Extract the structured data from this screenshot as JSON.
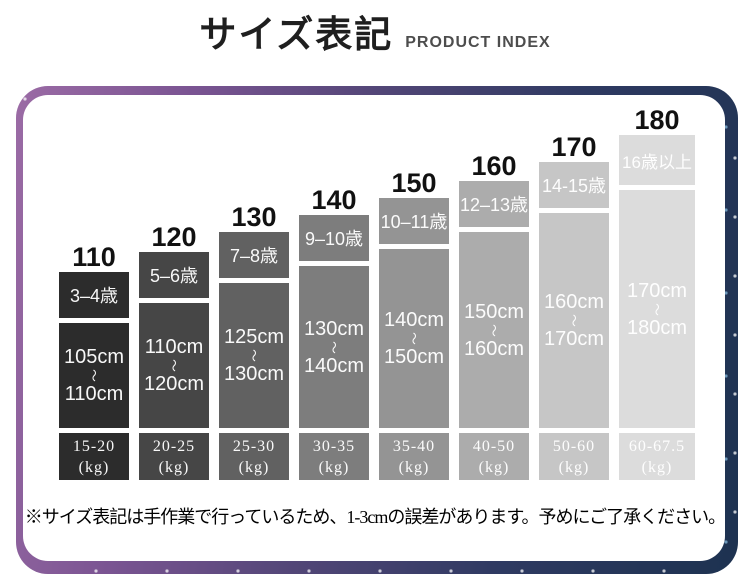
{
  "header": {
    "title_jp": "サイズ表記",
    "title_en": "PRODUCT INDEX"
  },
  "chart_data": {
    "type": "table",
    "title": "サイズ表記",
    "subtitle": "PRODUCT INDEX",
    "column_fields": [
      "size",
      "age",
      "height_min",
      "height_max",
      "weight",
      "unit"
    ],
    "range_symbol": "〜",
    "legend_position": "none",
    "grid": false,
    "rows": [
      {
        "size": "110",
        "age": "3–4歳",
        "height_min": "105cm",
        "height_max": "110cm",
        "weight": "15-20",
        "unit": "(kg)",
        "color": "#2c2c2c"
      },
      {
        "size": "120",
        "age": "5–6歳",
        "height_min": "110cm",
        "height_max": "120cm",
        "weight": "20-25",
        "unit": "(kg)",
        "color": "#464646"
      },
      {
        "size": "130",
        "age": "7–8歳",
        "height_min": "125cm",
        "height_max": "130cm",
        "weight": "25-30",
        "unit": "(kg)",
        "color": "#616161"
      },
      {
        "size": "140",
        "age": "9–10歳",
        "height_min": "130cm",
        "height_max": "140cm",
        "weight": "30-35",
        "unit": "(kg)",
        "color": "#7d7d7d"
      },
      {
        "size": "150",
        "age": "10–11歳",
        "height_min": "140cm",
        "height_max": "150cm",
        "weight": "35-40",
        "unit": "(kg)",
        "color": "#949494"
      },
      {
        "size": "160",
        "age": "12–13歳",
        "height_min": "150cm",
        "height_max": "160cm",
        "weight": "40-50",
        "unit": "(kg)",
        "color": "#acacac"
      },
      {
        "size": "170",
        "age": "14-15歳",
        "height_min": "160cm",
        "height_max": "170cm",
        "weight": "50-60",
        "unit": "(kg)",
        "color": "#c6c6c6"
      },
      {
        "size": "180",
        "age": "16歳以上",
        "height_min": "170cm",
        "height_max": "180cm",
        "weight": "60-67.5",
        "unit": "(kg)",
        "color": "#dcdcdc"
      }
    ],
    "frame_colors": {
      "left": "#9b6ba5",
      "right": "#1d3250"
    }
  },
  "footer": {
    "note": "※サイズ表記は手作業で行っているため、1-3cmの誤差があります。予めにご了承ください。"
  }
}
